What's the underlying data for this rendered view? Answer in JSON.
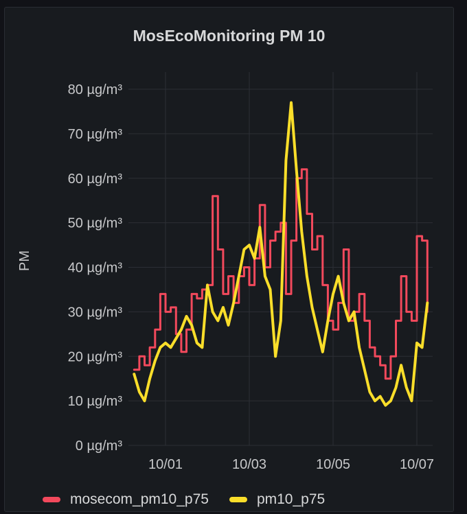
{
  "panel": {
    "title": "MosEcoMonitoring PM 10"
  },
  "chart_data": {
    "type": "line",
    "title": "MosEcoMonitoring PM 10",
    "xlabel": "",
    "ylabel": "PM",
    "unit": "µg/m³",
    "ylim": [
      0,
      80
    ],
    "yticks": [
      "0 µg/m³",
      "10 µg/m³",
      "20 µg/m³",
      "30 µg/m³",
      "40 µg/m³",
      "50 µg/m³",
      "60 µg/m³",
      "70 µg/m³",
      "80 µg/m³"
    ],
    "xticks": [
      "10/01",
      "10/03",
      "10/05",
      "10/07"
    ],
    "grid": true,
    "legend_position": "bottom-left",
    "series": [
      {
        "name": "mosecom_pm10_p75",
        "color": "#f2495c",
        "x": [
          "09/30 06:00",
          "09/30 09:00",
          "09/30 12:00",
          "09/30 15:00",
          "09/30 18:00",
          "09/30 21:00",
          "10/01 00:00",
          "10/01 03:00",
          "10/01 06:00",
          "10/01 09:00",
          "10/01 12:00",
          "10/01 15:00",
          "10/01 18:00",
          "10/01 21:00",
          "10/02 00:00",
          "10/02 03:00",
          "10/02 06:00",
          "10/02 09:00",
          "10/02 12:00",
          "10/02 15:00",
          "10/02 18:00",
          "10/02 21:00",
          "10/03 00:00",
          "10/03 03:00",
          "10/03 06:00",
          "10/03 09:00",
          "10/03 12:00",
          "10/03 15:00",
          "10/03 18:00",
          "10/03 21:00",
          "10/04 00:00",
          "10/04 03:00",
          "10/04 06:00",
          "10/04 09:00",
          "10/04 12:00",
          "10/04 15:00",
          "10/04 18:00",
          "10/04 21:00",
          "10/05 00:00",
          "10/05 03:00",
          "10/05 06:00",
          "10/05 09:00",
          "10/05 12:00",
          "10/05 15:00",
          "10/05 18:00",
          "10/05 21:00",
          "10/06 00:00",
          "10/06 03:00",
          "10/06 06:00",
          "10/06 09:00",
          "10/06 12:00",
          "10/06 15:00",
          "10/06 18:00",
          "10/06 21:00",
          "10/07 00:00",
          "10/07 03:00",
          "10/07 06:00"
        ],
        "values": [
          17,
          20,
          18,
          22,
          26,
          34,
          30,
          31,
          25,
          21,
          26,
          34,
          33,
          35,
          36,
          56,
          44,
          34,
          38,
          32,
          38,
          40,
          36,
          42,
          54,
          40,
          46,
          48,
          50,
          34,
          46,
          60,
          62,
          52,
          44,
          47,
          36,
          28,
          26,
          32,
          44,
          28,
          30,
          34,
          28,
          22,
          20,
          18,
          15,
          20,
          28,
          38,
          30,
          28,
          47,
          46,
          30
        ]
      },
      {
        "name": "pm10_p75",
        "color": "#fade2a",
        "x": [
          "09/30 06:00",
          "09/30 09:00",
          "09/30 12:00",
          "09/30 15:00",
          "09/30 18:00",
          "09/30 21:00",
          "10/01 00:00",
          "10/01 03:00",
          "10/01 06:00",
          "10/01 09:00",
          "10/01 12:00",
          "10/01 15:00",
          "10/01 18:00",
          "10/01 21:00",
          "10/02 00:00",
          "10/02 03:00",
          "10/02 06:00",
          "10/02 09:00",
          "10/02 12:00",
          "10/02 15:00",
          "10/02 18:00",
          "10/02 21:00",
          "10/03 00:00",
          "10/03 03:00",
          "10/03 06:00",
          "10/03 09:00",
          "10/03 12:00",
          "10/03 15:00",
          "10/03 18:00",
          "10/03 21:00",
          "10/04 00:00",
          "10/04 03:00",
          "10/04 06:00",
          "10/04 09:00",
          "10/04 12:00",
          "10/04 15:00",
          "10/04 18:00",
          "10/04 21:00",
          "10/05 00:00",
          "10/05 03:00",
          "10/05 06:00",
          "10/05 09:00",
          "10/05 12:00",
          "10/05 15:00",
          "10/05 18:00",
          "10/05 21:00",
          "10/06 00:00",
          "10/06 03:00",
          "10/06 06:00",
          "10/06 09:00",
          "10/06 12:00",
          "10/06 15:00",
          "10/06 18:00",
          "10/06 21:00",
          "10/07 00:00",
          "10/07 03:00",
          "10/07 06:00"
        ],
        "values": [
          16,
          12,
          10,
          15,
          19,
          22,
          23,
          22,
          24,
          26,
          29,
          27,
          23,
          22,
          36,
          30,
          28,
          31,
          27,
          32,
          38,
          44,
          45,
          42,
          49,
          38,
          35,
          20,
          28,
          64,
          77,
          62,
          48,
          38,
          31,
          26,
          21,
          28,
          34,
          38,
          32,
          28,
          30,
          22,
          17,
          12,
          10,
          11,
          9,
          10,
          13,
          18,
          13,
          10,
          23,
          22,
          32
        ]
      }
    ]
  }
}
